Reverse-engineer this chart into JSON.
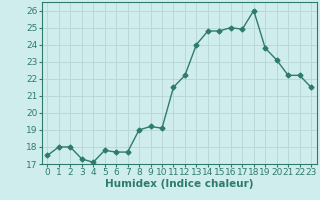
{
  "x": [
    0,
    1,
    2,
    3,
    4,
    5,
    6,
    7,
    8,
    9,
    10,
    11,
    12,
    13,
    14,
    15,
    16,
    17,
    18,
    19,
    20,
    21,
    22,
    23
  ],
  "y": [
    17.5,
    18.0,
    18.0,
    17.3,
    17.1,
    17.8,
    17.7,
    17.7,
    19.0,
    19.2,
    19.1,
    21.5,
    22.2,
    24.0,
    24.8,
    24.8,
    25.0,
    24.9,
    26.0,
    23.8,
    23.1,
    22.2,
    22.2,
    21.5
  ],
  "line_color": "#2e7b6e",
  "marker": "D",
  "marker_size": 2.5,
  "bg_color": "#d0eded",
  "grid_color": "#b8d4d4",
  "xlabel": "Humidex (Indice chaleur)",
  "xlabel_weight": "bold",
  "ylim": [
    17,
    26.5
  ],
  "yticks": [
    17,
    18,
    19,
    20,
    21,
    22,
    23,
    24,
    25,
    26
  ],
  "xlim": [
    -0.5,
    23.5
  ],
  "xticks": [
    0,
    1,
    2,
    3,
    4,
    5,
    6,
    7,
    8,
    9,
    10,
    11,
    12,
    13,
    14,
    15,
    16,
    17,
    18,
    19,
    20,
    21,
    22,
    23
  ],
  "tick_fontsize": 6.5,
  "xlabel_fontsize": 7.5,
  "tick_color": "#2e7b6e",
  "spine_color": "#2e7b6e"
}
